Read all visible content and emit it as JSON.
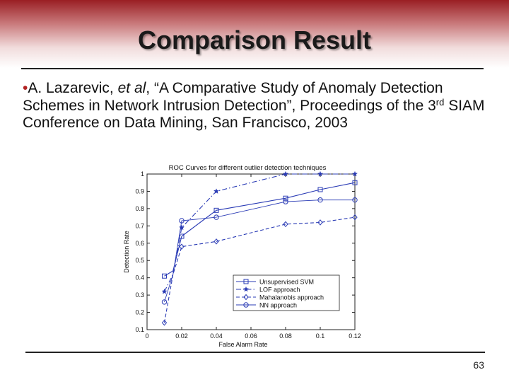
{
  "slide": {
    "title": "Comparison Result",
    "citation": {
      "bullet": "•",
      "part1": "A. Lazarevic, ",
      "et_al": "et al",
      "part2": ", “A Comparative Study of Anomaly Detection Schemes in Network Intrusion Detection”, Proceedings of the 3",
      "superscript": "rd",
      "part3": " SIAM Conference on Data Mining, San Francisco, 2003"
    },
    "page_number": "63"
  },
  "chart_data": {
    "type": "line",
    "title": "ROC Curves for different outlier detection techniques",
    "xlabel": "False Alarm Rate",
    "ylabel": "Detection Rate",
    "xlim": [
      0,
      0.12
    ],
    "ylim": [
      0.1,
      1.0
    ],
    "x_ticks": [
      "0",
      "0.02",
      "0.04",
      "0.06",
      "0.08",
      "0.1",
      "0.12"
    ],
    "y_ticks": [
      "0.1",
      "0.2",
      "0.3",
      "0.4",
      "0.5",
      "0.6",
      "0.7",
      "0.8",
      "0.9",
      "1"
    ],
    "grid": false,
    "legend_position": "bottom-right",
    "series": [
      {
        "name": "Unsupervised SVM",
        "marker": "square",
        "dash": "solid",
        "color": "#2a3bb5",
        "points": [
          [
            0.01,
            0.41
          ],
          [
            0.015,
            0.44
          ],
          [
            0.02,
            0.64
          ],
          [
            0.04,
            0.79
          ],
          [
            0.08,
            0.86
          ],
          [
            0.1,
            0.91
          ],
          [
            0.12,
            0.95
          ]
        ]
      },
      {
        "name": "LOF approach",
        "marker": "star",
        "dash": "dash-dot",
        "color": "#2a3bb5",
        "points": [
          [
            0.01,
            0.32
          ],
          [
            0.015,
            0.42
          ],
          [
            0.02,
            0.69
          ],
          [
            0.04,
            0.9
          ],
          [
            0.08,
            1.0
          ],
          [
            0.1,
            1.0
          ],
          [
            0.12,
            1.0
          ]
        ]
      },
      {
        "name": "Mahalanobis approach",
        "marker": "diamond",
        "dash": "dashed",
        "color": "#2a3bb5",
        "points": [
          [
            0.01,
            0.14
          ],
          [
            0.015,
            0.42
          ],
          [
            0.02,
            0.58
          ],
          [
            0.04,
            0.61
          ],
          [
            0.08,
            0.71
          ],
          [
            0.1,
            0.72
          ],
          [
            0.12,
            0.75
          ]
        ]
      },
      {
        "name": "NN approach",
        "marker": "circle",
        "dash": "solid-thin",
        "color": "#2a3bb5",
        "points": [
          [
            0.01,
            0.26
          ],
          [
            0.015,
            0.42
          ],
          [
            0.02,
            0.73
          ],
          [
            0.04,
            0.75
          ],
          [
            0.08,
            0.84
          ],
          [
            0.1,
            0.85
          ],
          [
            0.12,
            0.85
          ]
        ]
      }
    ]
  }
}
